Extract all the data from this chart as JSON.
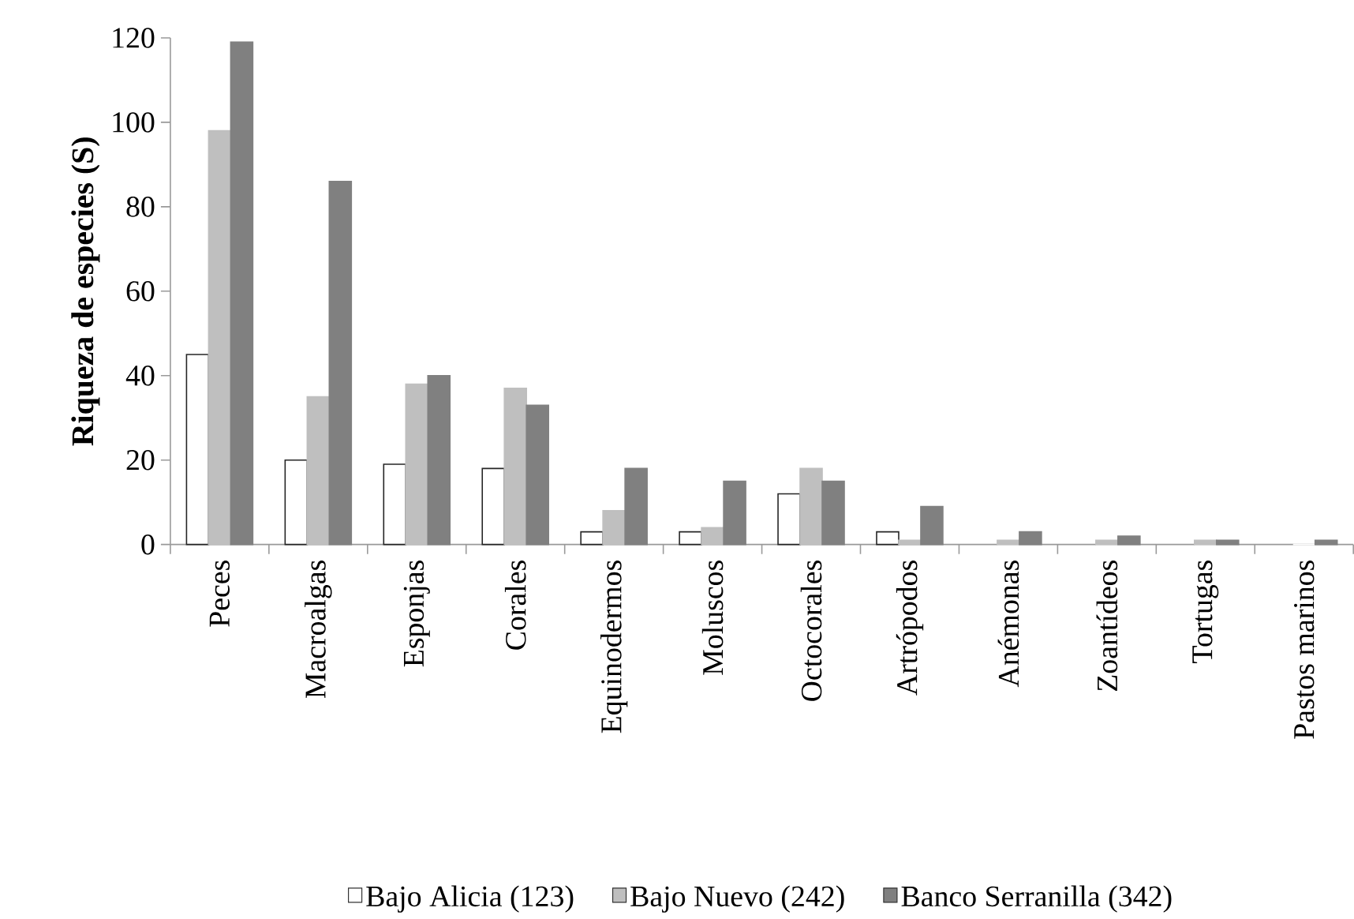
{
  "chart_data": {
    "type": "bar",
    "ylabel": "**Riqueza de especies (S)**",
    "categories": [
      "Peces",
      "Macroalgas",
      "Esponjas",
      "Corales",
      "Equinodermos",
      "Moluscos",
      "Octocorales",
      "Artrópodos",
      "Anémonas",
      "Zoantídeos",
      "Tortugas",
      "Pastos marinos"
    ],
    "series": [
      {
        "name": "Bajo Alicia (123)",
        "color": "#ffffff",
        "values": [
          45,
          20,
          19,
          18,
          3,
          3,
          12,
          3,
          0,
          0,
          0,
          0
        ]
      },
      {
        "name": "Bajo Nuevo (242)",
        "color": "#bfbfbf",
        "values": [
          98,
          35,
          38,
          37,
          8,
          4,
          18,
          1,
          1,
          1,
          1,
          0
        ]
      },
      {
        "name": "Banco Serranilla (342)",
        "color": "#808080",
        "values": [
          119,
          86,
          40,
          33,
          18,
          15,
          15,
          9,
          3,
          2,
          1,
          1
        ]
      }
    ],
    "ylim": [
      0,
      120
    ],
    "yticks": [
      0,
      20,
      40,
      60,
      80,
      100,
      120
    ],
    "grid": false,
    "legend": "bottom"
  }
}
